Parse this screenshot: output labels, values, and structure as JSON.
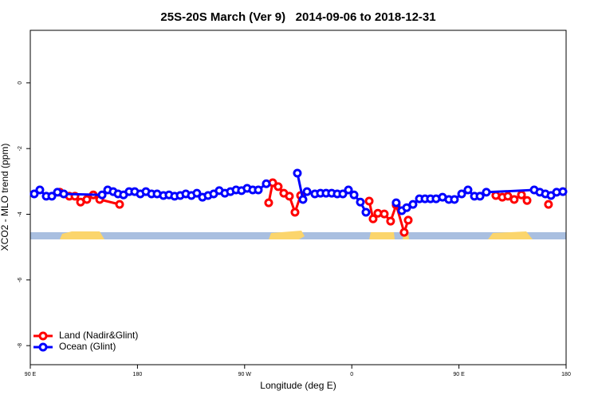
{
  "chart_data": {
    "type": "line",
    "title": "25S-20S March (Ver 9)   2014-09-06 to 2018-12-31",
    "xlabel": "Longitude (deg E)",
    "ylabel": "XCO2 - MLO trend (ppm)",
    "xlim": [
      90,
      540
    ],
    "ylim": [
      -8.58,
      1.6
    ],
    "xticks": [
      {
        "value": 90,
        "label": "90 E"
      },
      180,
      {
        "value": 270,
        "label": "90 W"
      },
      {
        "value": 360,
        "label": "0"
      },
      {
        "value": 450,
        "label": "90 E"
      },
      {
        "value": 540,
        "label": "180"
      }
    ],
    "yticks": [
      0,
      -2,
      -4,
      -6,
      -8
    ],
    "legend": "bottomleft",
    "series": [
      {
        "name": "Land (Nadir&Glint)",
        "color": "#ff0000",
        "x": [
          114.8,
          122.8,
          127.5,
          132.2,
          137.5,
          142.9,
          148.3,
          165.0,
          null,
          290.2,
          293.6,
          298.2,
          302.9,
          307.6,
          312.3,
          317.0,
          null,
          374.6,
          377.9,
          381.9,
          387.3,
          392.6,
          397.3,
          404.0,
          407.4,
          null,
          481.0,
          486.4,
          491.1,
          496.4,
          502.5,
          507.2,
          null,
          525.2
        ],
        "values": [
          -3.33,
          -3.45,
          -3.45,
          -3.63,
          -3.55,
          -3.41,
          -3.55,
          -3.7,
          null,
          -3.65,
          -3.04,
          -3.16,
          -3.36,
          -3.45,
          -3.94,
          -3.43,
          null,
          -3.6,
          -4.14,
          -3.97,
          -3.99,
          -4.21,
          -3.72,
          -4.55,
          -4.18,
          null,
          -3.43,
          -3.48,
          -3.45,
          -3.55,
          -3.41,
          -3.58,
          null,
          -3.7
        ]
      },
      {
        "name": "Ocean (Glint)",
        "color": "#0000ff",
        "x": [
          93.3,
          98.0,
          103.4,
          108.1,
          112.8,
          118.1,
          150.3,
          155.0,
          159.6,
          163.7,
          168.3,
          173.0,
          177.7,
          182.4,
          187.1,
          191.8,
          196.5,
          201.8,
          206.5,
          211.2,
          215.9,
          220.6,
          225.3,
          229.9,
          234.6,
          239.3,
          244.0,
          248.7,
          253.4,
          258.1,
          262.8,
          267.4,
          272.1,
          276.8,
          281.5,
          288.2,
          null,
          314.3,
          319.0,
          322.4,
          329.0,
          333.7,
          338.4,
          343.1,
          347.8,
          352.5,
          357.2,
          361.9,
          367.2,
          371.9,
          null,
          397.3,
          402.0,
          406.1,
          411.4,
          416.8,
          421.5,
          426.1,
          430.8,
          436.2,
          441.5,
          446.2,
          452.3,
          457.6,
          463.0,
          467.7,
          473.0,
          513.2,
          517.9,
          522.6,
          527.3,
          532.0,
          537.3
        ],
        "values": [
          -3.38,
          -3.26,
          -3.45,
          -3.45,
          -3.33,
          -3.38,
          -3.41,
          -3.26,
          -3.31,
          -3.38,
          -3.41,
          -3.31,
          -3.31,
          -3.38,
          -3.31,
          -3.38,
          -3.38,
          -3.43,
          -3.41,
          -3.45,
          -3.43,
          -3.38,
          -3.43,
          -3.36,
          -3.48,
          -3.43,
          -3.38,
          -3.28,
          -3.36,
          -3.31,
          -3.26,
          -3.28,
          -3.21,
          -3.26,
          -3.26,
          -3.07,
          null,
          -2.75,
          -3.55,
          -3.31,
          -3.38,
          -3.36,
          -3.36,
          -3.36,
          -3.38,
          -3.38,
          -3.26,
          -3.41,
          -3.63,
          -3.94,
          null,
          -3.65,
          -3.89,
          -3.8,
          -3.7,
          -3.53,
          -3.53,
          -3.53,
          -3.53,
          -3.48,
          -3.55,
          -3.55,
          -3.38,
          -3.26,
          -3.45,
          -3.45,
          -3.33,
          -3.26,
          -3.33,
          -3.38,
          -3.43,
          -3.33,
          -3.31
        ]
      }
    ]
  }
}
